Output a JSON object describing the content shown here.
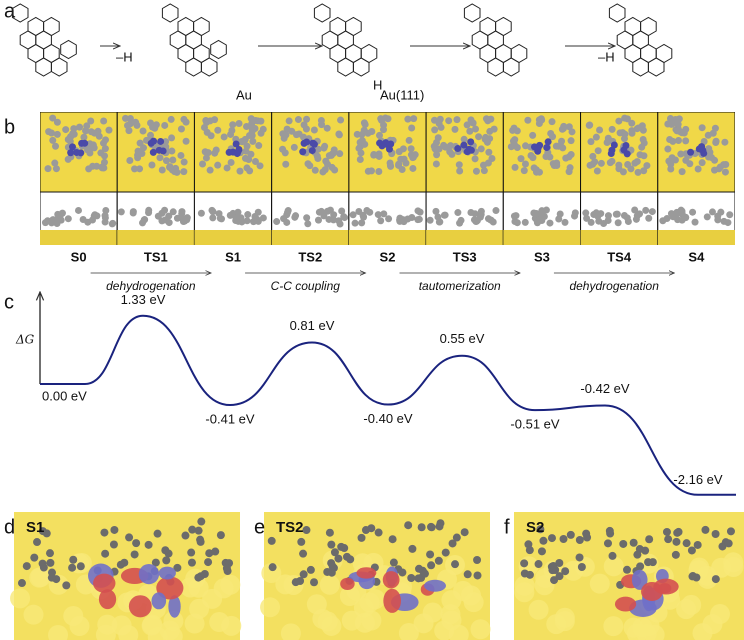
{
  "panel_a": {
    "label": "a",
    "step_labels": [
      "–H",
      "–H"
    ],
    "au_label": "Au",
    "h_labels": [
      "H",
      "H"
    ],
    "surface_label": "Au(111)"
  },
  "panel_b": {
    "label": "b",
    "states": [
      "S0",
      "TS1",
      "S1",
      "TS2",
      "S2",
      "TS3",
      "S3",
      "TS4",
      "S4"
    ],
    "steps": [
      "dehydrogenation",
      "C-C coupling",
      "tautomerization",
      "dehydrogenation"
    ]
  },
  "panel_c": {
    "label": "c",
    "y_label": "ΔG",
    "energies": [
      0.0,
      1.33,
      -0.41,
      0.81,
      -0.4,
      0.55,
      -0.51,
      -0.42,
      -2.16
    ],
    "energy_labels": [
      "0.00 eV",
      "1.33 eV",
      "-0.41 eV",
      "0.81 eV",
      "-0.40 eV",
      "0.55 eV",
      "-0.51 eV",
      "-0.42 eV",
      "-2.16 eV"
    ]
  },
  "panels": [
    {
      "label": "d",
      "state": "S1"
    },
    {
      "label": "e",
      "state": "TS2"
    },
    {
      "label": "f",
      "state": "S2"
    }
  ]
}
